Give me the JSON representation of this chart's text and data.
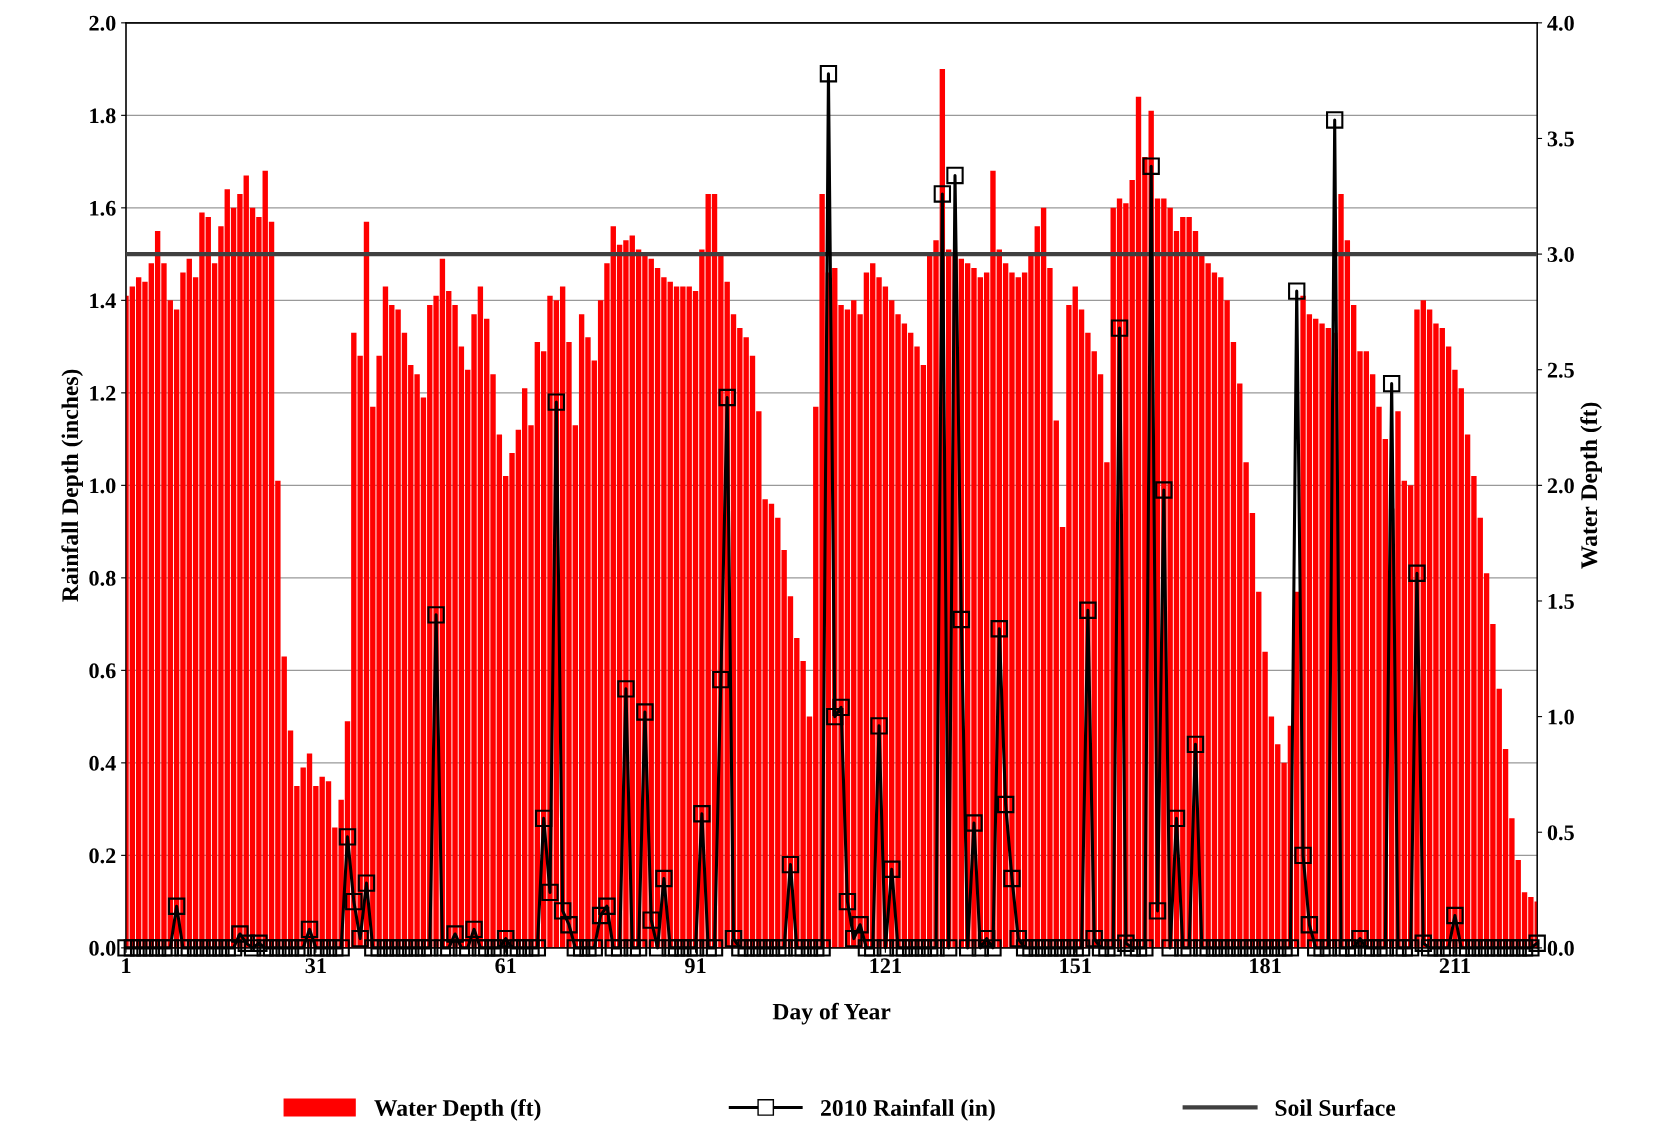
{
  "chart_data": {
    "type": "bar",
    "xlabel": "Day of Year",
    "ylabel": "Rainfall Depth (inches)",
    "y2label": "Water Depth (ft)",
    "x": [
      1,
      2,
      3,
      4,
      5,
      6,
      7,
      8,
      9,
      10,
      11,
      12,
      13,
      14,
      15,
      16,
      17,
      18,
      19,
      20,
      21,
      22,
      23,
      24,
      25,
      26,
      27,
      28,
      29,
      30,
      31,
      32,
      33,
      34,
      35,
      36,
      37,
      38,
      39,
      40,
      41,
      42,
      43,
      44,
      45,
      46,
      47,
      48,
      49,
      50,
      51,
      52,
      53,
      54,
      55,
      56,
      57,
      58,
      59,
      60,
      61,
      62,
      63,
      64,
      65,
      66,
      67,
      68,
      69,
      70,
      71,
      72,
      73,
      74,
      75,
      76,
      77,
      78,
      79,
      80,
      81,
      82,
      83,
      84,
      85,
      86,
      87,
      88,
      89,
      90,
      91,
      92,
      93,
      94,
      95,
      96,
      97,
      98,
      99,
      100,
      101,
      102,
      103,
      104,
      105,
      106,
      107,
      108,
      109,
      110,
      111,
      112,
      113,
      114,
      115,
      116,
      117,
      118,
      119,
      120,
      121,
      122,
      123,
      124,
      125,
      126,
      127,
      128,
      129,
      130,
      131,
      132,
      133,
      134,
      135,
      136,
      137,
      138,
      139,
      140,
      141,
      142,
      143,
      144,
      145,
      146,
      147,
      148,
      149,
      150,
      151,
      152,
      153,
      154,
      155,
      156,
      157,
      158,
      159,
      160,
      161,
      162,
      163,
      164,
      165,
      166,
      167,
      168,
      169,
      170,
      171,
      172,
      173,
      174,
      175,
      176,
      177,
      178,
      179,
      180,
      181,
      182,
      183,
      184,
      185,
      186,
      187,
      188,
      189,
      190,
      191,
      192,
      193,
      194,
      195,
      196,
      197,
      198,
      199,
      200,
      201,
      202,
      203,
      204,
      205,
      206,
      207,
      208,
      209,
      210,
      211,
      212,
      213,
      214,
      215,
      216,
      217,
      218,
      219,
      220,
      221,
      222,
      223,
      224
    ],
    "series": [
      {
        "name": "Water Depth (ft)",
        "axis": "y2",
        "color": "#ff0000",
        "values": [
          2.82,
          2.86,
          2.9,
          2.88,
          2.96,
          3.1,
          2.96,
          2.8,
          2.76,
          2.92,
          2.98,
          2.9,
          3.18,
          3.16,
          2.96,
          3.12,
          3.28,
          3.2,
          3.26,
          3.34,
          3.2,
          3.16,
          3.36,
          3.14,
          2.02,
          1.26,
          0.94,
          0.7,
          0.78,
          0.84,
          0.7,
          0.74,
          0.72,
          0.52,
          0.64,
          0.98,
          2.66,
          2.56,
          3.14,
          2.34,
          2.56,
          2.86,
          2.78,
          2.76,
          2.66,
          2.52,
          2.48,
          2.38,
          2.78,
          2.82,
          2.98,
          2.84,
          2.78,
          2.6,
          2.5,
          2.74,
          2.86,
          2.72,
          2.48,
          2.22,
          2.04,
          2.14,
          2.24,
          2.42,
          2.26,
          2.62,
          2.58,
          2.82,
          2.8,
          2.86,
          2.62,
          2.26,
          2.74,
          2.64,
          2.54,
          2.8,
          2.96,
          3.12,
          3.04,
          3.06,
          3.08,
          3.02,
          3.0,
          2.98,
          2.94,
          2.9,
          2.88,
          2.86,
          2.86,
          2.86,
          2.84,
          3.02,
          3.26,
          3.26,
          3.0,
          2.88,
          2.74,
          2.68,
          2.64,
          2.56,
          2.32,
          1.94,
          1.92,
          1.86,
          1.72,
          1.52,
          1.34,
          1.24,
          1.0,
          2.34,
          3.26,
          2.92,
          2.94,
          2.78,
          2.76,
          2.8,
          2.74,
          2.92,
          2.96,
          2.9,
          2.86,
          2.8,
          2.74,
          2.7,
          2.66,
          2.6,
          2.52,
          3.0,
          3.06,
          3.8,
          3.02,
          3.0,
          2.98,
          2.96,
          2.94,
          2.9,
          2.92,
          3.36,
          3.02,
          2.96,
          2.92,
          2.9,
          2.92,
          3.0,
          3.12,
          3.2,
          2.94,
          2.28,
          1.82,
          2.78,
          2.86,
          2.76,
          2.66,
          2.58,
          2.48,
          2.1,
          3.2,
          3.24,
          3.22,
          3.32,
          3.68,
          3.42,
          3.62,
          3.24,
          3.24,
          3.2,
          3.1,
          3.16,
          3.16,
          3.1,
          3.0,
          2.96,
          2.92,
          2.9,
          2.8,
          2.62,
          2.44,
          2.1,
          1.88,
          1.54,
          1.28,
          1.0,
          0.88,
          0.8,
          0.96,
          1.54,
          2.82,
          2.74,
          2.72,
          2.7,
          2.68,
          2.66,
          3.26,
          3.06,
          2.78,
          2.58,
          2.58,
          2.48,
          2.34,
          2.2,
          1.9,
          2.32,
          2.02,
          2.0,
          2.76,
          2.8,
          2.76,
          2.7,
          2.68,
          2.6,
          2.5,
          2.42,
          2.22,
          2.04,
          1.86,
          1.62,
          1.4,
          1.12,
          0.86,
          0.56,
          0.38,
          0.24,
          0.22,
          0.2
        ]
      },
      {
        "name": "2010 Rainfall (in)",
        "type": "line",
        "color": "#000000",
        "marker": "square",
        "line_style": "solid",
        "values": [
          0,
          0,
          0,
          0,
          0,
          0,
          0,
          0,
          0.09,
          0,
          0,
          0,
          0,
          0,
          0,
          0,
          0,
          0,
          0.03,
          0.01,
          0,
          0.01,
          0,
          0,
          0,
          0,
          0,
          0,
          0,
          0.04,
          0,
          0,
          0,
          0,
          0,
          0.24,
          0.1,
          0.02,
          0.14,
          0,
          0,
          0,
          0,
          0,
          0,
          0,
          0,
          0,
          0,
          0.72,
          0,
          0,
          0.03,
          0,
          0,
          0.04,
          0,
          0,
          0,
          0,
          0.02,
          0,
          0,
          0,
          0,
          0,
          0.28,
          0.12,
          1.18,
          0.08,
          0.05,
          0,
          0,
          0,
          0,
          0.07,
          0.09,
          0,
          0,
          0.56,
          0,
          0,
          0.51,
          0.06,
          0,
          0.15,
          0,
          0,
          0,
          0,
          0,
          0.29,
          0,
          0,
          0.58,
          1.19,
          0.02,
          0,
          0,
          0,
          0,
          0,
          0,
          0,
          0,
          0.18,
          0,
          0,
          0,
          0,
          0,
          1.89,
          0.5,
          0.52,
          0.1,
          0.02,
          0.05,
          0,
          0,
          0.48,
          0,
          0.17,
          0,
          0,
          0,
          0,
          0,
          0,
          0,
          1.63,
          0,
          1.67,
          0.71,
          0,
          0.27,
          0,
          0.02,
          0,
          0.69,
          0.31,
          0.15,
          0.02,
          0,
          0,
          0,
          0,
          0,
          0,
          0,
          0,
          0,
          0,
          0.73,
          0.02,
          0,
          0,
          0,
          1.34,
          0.01,
          0,
          0,
          0,
          1.69,
          0.08,
          0.99,
          0,
          0.28,
          0,
          0,
          0.44,
          0,
          0,
          0,
          0,
          0,
          0,
          0,
          0,
          0,
          0,
          0,
          0,
          0,
          0,
          0,
          1.42,
          0.2,
          0.05,
          0,
          0,
          0,
          1.79,
          0,
          0,
          0,
          0.02,
          0,
          0,
          0,
          0,
          1.22,
          0,
          0,
          0,
          0.81,
          0.01,
          0,
          0,
          0,
          0,
          0.07,
          0,
          0,
          0,
          0,
          0,
          0,
          0,
          0,
          0,
          0,
          0,
          0,
          0.01
        ]
      }
    ],
    "ref_lines": [
      {
        "axis": "y2",
        "value": 3.0,
        "label": "Soil Surface",
        "color": "#404040",
        "line_style": "solid"
      }
    ],
    "xlim": [
      1,
      224
    ],
    "xticks": [
      1,
      31,
      61,
      91,
      121,
      151,
      181,
      211
    ],
    "ylim": [
      0,
      2.0
    ],
    "yticks": [
      {
        "value": 0,
        "label": "0.0"
      },
      0.2,
      0.4,
      0.6,
      0.8,
      {
        "value": 1,
        "label": "1.0"
      },
      1.2,
      1.4,
      1.6,
      1.8,
      {
        "value": 2,
        "label": "2.0"
      }
    ],
    "y2lim": [
      0,
      4.0
    ],
    "y2ticks": [
      {
        "value": 0,
        "label": "0.0"
      },
      0.5,
      {
        "value": 1,
        "label": "1.0"
      },
      1.5,
      {
        "value": 2,
        "label": "2.0"
      },
      2.5,
      {
        "value": 3,
        "label": "3.0"
      },
      3.5,
      {
        "value": 4,
        "label": "4.0"
      }
    ],
    "grid": "y",
    "legend": "bottom"
  }
}
